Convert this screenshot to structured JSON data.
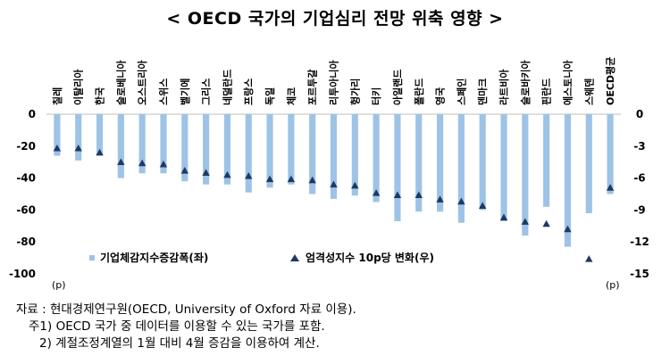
{
  "chart_data": {
    "type": "bar",
    "title": "< OECD 국가의 기업심리 전망 위축 영향 >",
    "categories": [
      "칠레",
      "이탈리아",
      "한국",
      "슬로베니아",
      "오스트리아",
      "스위스",
      "벨기에",
      "그리스",
      "네덜란드",
      "프랑스",
      "독일",
      "체코",
      "포르투갈",
      "리투아니아",
      "헝가리",
      "터키",
      "아일랜드",
      "폴란드",
      "영국",
      "스페인",
      "덴마크",
      "라트비아",
      "슬로바키아",
      "핀란드",
      "에스토니아",
      "스웨덴",
      "OECD평균"
    ],
    "series": [
      {
        "name": "기업체감지수증감폭(좌)",
        "axis": "left",
        "type": "bar",
        "color": "#9DC3E6",
        "values": [
          -26,
          -29,
          -25,
          -40,
          -37,
          -37,
          -42,
          -44,
          -44,
          -49,
          -46,
          -44,
          -50,
          -53,
          -51,
          -55,
          -67,
          -61,
          -61,
          -68,
          -60,
          -67,
          -76,
          -58,
          -83,
          -62,
          -50
        ]
      },
      {
        "name": "엄격성지수 10p당 변화(우)",
        "axis": "right",
        "type": "scatter",
        "color": "#1F3864",
        "values": [
          -3.2,
          -3.2,
          -3.6,
          -4.5,
          -4.6,
          -4.7,
          -5.3,
          -5.5,
          -5.7,
          -5.8,
          -6.1,
          -6.1,
          -6.2,
          -6.6,
          -6.7,
          -7.4,
          -7.6,
          -7.6,
          -8.0,
          -8.2,
          -8.6,
          -9.7,
          -10.1,
          -10.3,
          -10.8,
          -13.6,
          -6.9
        ]
      }
    ],
    "y_left": {
      "ylim": [
        -100,
        0
      ],
      "ticks": [
        0,
        -20,
        -40,
        -60,
        -80,
        -100
      ],
      "unit": "(p)"
    },
    "y_right": {
      "ylim": [
        -15,
        0
      ],
      "ticks": [
        0,
        -3,
        -6,
        -9,
        -12,
        -15
      ],
      "unit": "(p)"
    },
    "legend_position": "bottom-center",
    "grid": false
  },
  "notes": [
    "자료 : 현대경제연구원(OECD, University of Oxford 자료 이용).",
    "주1) OECD 국가 중 데이터를 이용할 수 있는 국가를 포함.",
    "2) 계절조정계열의 1월 대비 4월 증감을 이용하여 계산."
  ]
}
